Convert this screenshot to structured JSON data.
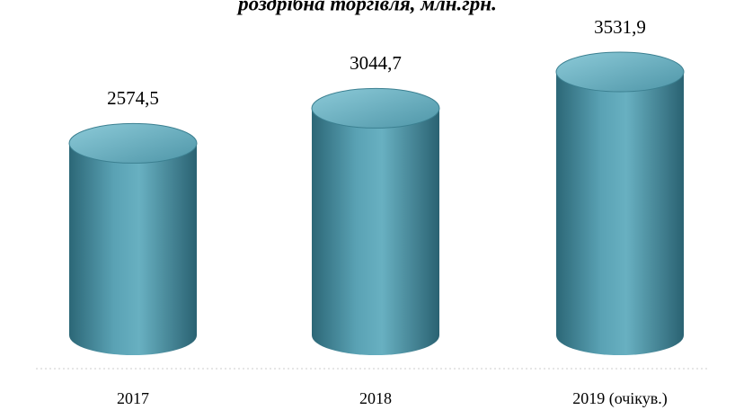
{
  "chart_data": {
    "type": "bar",
    "title": "роздрібна торгівля, млн.грн.",
    "categories": [
      "2017",
      "2018",
      "2019 (очікув.)"
    ],
    "values": [
      2574.5,
      3044.7,
      3531.9
    ],
    "value_labels": [
      "2574,5",
      "3044,7",
      "3531,9"
    ],
    "color": "#4a93a6"
  }
}
